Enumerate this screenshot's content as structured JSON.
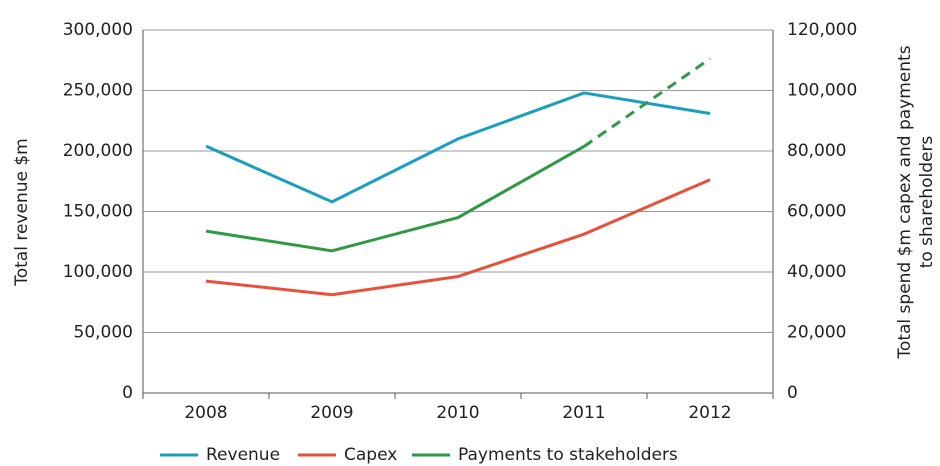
{
  "chart_data": {
    "type": "line",
    "ylabel": "Total revenue $m",
    "y2label": [
      "Total spend $m capex and payments",
      "to shareholders"
    ],
    "categories": [
      "2008",
      "2009",
      "2010",
      "2011",
      "2012"
    ],
    "series": [
      {
        "name": "Revenue",
        "color": "#1a9fbf",
        "values": [
          204000,
          158000,
          210000,
          248000,
          231000
        ]
      },
      {
        "name": "Capex",
        "color": "#e8503a",
        "axis": "y2",
        "values": [
          37000,
          32500,
          38500,
          52500,
          70500
        ]
      },
      {
        "name": "Payments to stakeholders",
        "color": "#2e9a45",
        "axis": "y2",
        "values": [
          53500,
          47000,
          58000,
          81500,
          110500
        ],
        "projected": [
          false,
          false,
          false,
          false,
          true
        ]
      }
    ],
    "ylim": [
      0,
      300000
    ],
    "yticks": [
      0,
      {
        "value": 50000,
        "label": "50,000"
      },
      {
        "value": 100000,
        "label": "100,000"
      },
      {
        "value": 150000,
        "label": "150,000"
      },
      {
        "value": 200000,
        "label": "200,000"
      },
      {
        "value": 250000,
        "label": "250,000"
      },
      {
        "value": 300000,
        "label": "300,000"
      }
    ],
    "y2lim": [
      0,
      120000
    ],
    "y2ticks": [
      0,
      {
        "value": 20000,
        "label": "20,000"
      },
      {
        "value": 40000,
        "label": "40,000"
      },
      {
        "value": 60000,
        "label": "60,000"
      },
      {
        "value": 80000,
        "label": "80,000"
      },
      {
        "value": 100000,
        "label": "100,000"
      },
      {
        "value": 120000,
        "label": "120,000"
      }
    ],
    "grid": true,
    "legend": "bottom"
  }
}
